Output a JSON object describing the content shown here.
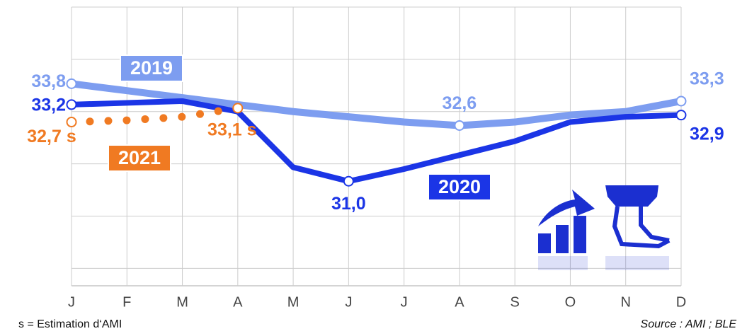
{
  "chart_data": {
    "type": "line",
    "categories": [
      "J",
      "F",
      "M",
      "A",
      "M",
      "J",
      "J",
      "A",
      "S",
      "O",
      "N",
      "D"
    ],
    "ylim": [
      28,
      36
    ],
    "yticks": [
      28.5,
      30,
      31.5,
      33,
      34.5,
      36
    ],
    "grid": true,
    "series": [
      {
        "name": "2019",
        "color": "#7d9df0",
        "values": [
          33.8,
          33.6,
          33.4,
          33.2,
          33.0,
          32.85,
          32.7,
          32.6,
          32.7,
          32.9,
          33.0,
          33.3
        ],
        "value_labels": [
          "33,8",
          null,
          null,
          null,
          null,
          null,
          null,
          "32,6",
          null,
          null,
          null,
          "33,3"
        ]
      },
      {
        "name": "2020",
        "color": "#1b35e6",
        "values": [
          33.2,
          33.25,
          33.3,
          33.0,
          31.4,
          31.0,
          31.35,
          31.75,
          32.15,
          32.7,
          32.85,
          32.9
        ],
        "value_labels": [
          "33,2",
          null,
          null,
          null,
          null,
          "31,0",
          null,
          null,
          null,
          null,
          null,
          "32,9"
        ]
      },
      {
        "name": "2021",
        "color": "#f07a22",
        "dotted": true,
        "values": [
          32.7,
          32.75,
          32.85,
          33.1,
          null,
          null,
          null,
          null,
          null,
          null,
          null,
          null
        ],
        "value_labels": [
          "32,7 s",
          null,
          null,
          "33,1 s",
          null,
          null,
          null,
          null,
          null,
          null,
          null,
          null
        ]
      }
    ],
    "footnote": "s = Estimation d‘AMI",
    "source": "Source : AMI ; BLE"
  }
}
